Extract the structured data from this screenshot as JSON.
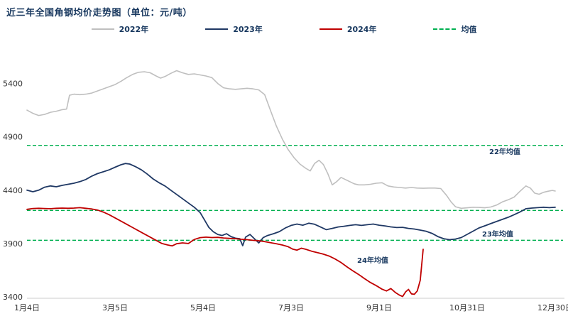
{
  "title": "近三年全国角钢均价走势图（单位：元/吨）",
  "legend": {
    "items": [
      {
        "key": "2022",
        "label": "2022年",
        "color": "#bfbfbf",
        "dash": false
      },
      {
        "key": "2023",
        "label": "2023年",
        "color": "#1f3864",
        "dash": false
      },
      {
        "key": "2024",
        "label": "2024年",
        "color": "#c00000",
        "dash": false
      },
      {
        "key": "mean",
        "label": "均值",
        "color": "#00b050",
        "dash": true
      }
    ]
  },
  "chart_data": {
    "type": "line",
    "title": "近三年全国角钢均价走势图",
    "unit": "元/吨",
    "xlabel": "",
    "ylabel": "",
    "ylim": [
      3400,
      5650
    ],
    "y_ticks": [
      3400,
      3900,
      4400,
      4900,
      5400
    ],
    "x_ticks": [
      {
        "day": 4,
        "label": "1月4日"
      },
      {
        "day": 64,
        "label": "3月5日"
      },
      {
        "day": 124,
        "label": "5月4日"
      },
      {
        "day": 184,
        "label": "7月3日"
      },
      {
        "day": 244,
        "label": "9月1日"
      },
      {
        "day": 304,
        "label": "10月31日"
      },
      {
        "day": 364,
        "label": "12月30日"
      }
    ],
    "mean_color": "#00b050",
    "mean_lines": [
      {
        "label": "22年均值",
        "value": 4820,
        "label_x": 689,
        "label_y": 205
      },
      {
        "label": "23年均值",
        "value": 4210,
        "label_x": 679,
        "label_y": 321
      },
      {
        "label": "24年均值",
        "value": 3930,
        "label_x": 503,
        "label_y": 358
      }
    ],
    "series": [
      {
        "name": "2022",
        "color": "#bfbfbf",
        "width": 1.6,
        "points": [
          [
            4,
            5150
          ],
          [
            8,
            5120
          ],
          [
            12,
            5100
          ],
          [
            16,
            5110
          ],
          [
            20,
            5130
          ],
          [
            24,
            5140
          ],
          [
            28,
            5155
          ],
          [
            31,
            5160
          ],
          [
            33,
            5290
          ],
          [
            36,
            5300
          ],
          [
            40,
            5295
          ],
          [
            44,
            5300
          ],
          [
            48,
            5310
          ],
          [
            52,
            5330
          ],
          [
            56,
            5350
          ],
          [
            60,
            5370
          ],
          [
            64,
            5390
          ],
          [
            68,
            5420
          ],
          [
            72,
            5455
          ],
          [
            76,
            5485
          ],
          [
            80,
            5505
          ],
          [
            84,
            5510
          ],
          [
            88,
            5500
          ],
          [
            92,
            5470
          ],
          [
            95,
            5450
          ],
          [
            98,
            5465
          ],
          [
            102,
            5495
          ],
          [
            106,
            5520
          ],
          [
            110,
            5500
          ],
          [
            114,
            5485
          ],
          [
            118,
            5490
          ],
          [
            122,
            5480
          ],
          [
            126,
            5470
          ],
          [
            130,
            5455
          ],
          [
            134,
            5400
          ],
          [
            138,
            5360
          ],
          [
            142,
            5350
          ],
          [
            146,
            5345
          ],
          [
            150,
            5350
          ],
          [
            154,
            5355
          ],
          [
            158,
            5350
          ],
          [
            162,
            5340
          ],
          [
            166,
            5295
          ],
          [
            170,
            5145
          ],
          [
            174,
            5000
          ],
          [
            178,
            4880
          ],
          [
            182,
            4780
          ],
          [
            186,
            4705
          ],
          [
            190,
            4645
          ],
          [
            194,
            4605
          ],
          [
            197,
            4580
          ],
          [
            200,
            4650
          ],
          [
            203,
            4680
          ],
          [
            206,
            4640
          ],
          [
            209,
            4555
          ],
          [
            212,
            4450
          ],
          [
            215,
            4480
          ],
          [
            218,
            4520
          ],
          [
            221,
            4500
          ],
          [
            224,
            4480
          ],
          [
            227,
            4460
          ],
          [
            230,
            4450
          ],
          [
            234,
            4450
          ],
          [
            238,
            4455
          ],
          [
            242,
            4465
          ],
          [
            246,
            4470
          ],
          [
            250,
            4440
          ],
          [
            254,
            4430
          ],
          [
            258,
            4425
          ],
          [
            262,
            4420
          ],
          [
            266,
            4425
          ],
          [
            270,
            4420
          ],
          [
            274,
            4418
          ],
          [
            278,
            4420
          ],
          [
            282,
            4420
          ],
          [
            286,
            4415
          ],
          [
            290,
            4350
          ],
          [
            293,
            4290
          ],
          [
            296,
            4245
          ],
          [
            300,
            4230
          ],
          [
            304,
            4235
          ],
          [
            308,
            4240
          ],
          [
            312,
            4238
          ],
          [
            316,
            4235
          ],
          [
            320,
            4242
          ],
          [
            324,
            4260
          ],
          [
            328,
            4290
          ],
          [
            332,
            4310
          ],
          [
            336,
            4335
          ],
          [
            340,
            4390
          ],
          [
            344,
            4440
          ],
          [
            347,
            4420
          ],
          [
            350,
            4372
          ],
          [
            353,
            4362
          ],
          [
            356,
            4380
          ],
          [
            359,
            4390
          ],
          [
            362,
            4398
          ],
          [
            364,
            4392
          ]
        ]
      },
      {
        "name": "2023",
        "color": "#1f3864",
        "width": 1.8,
        "points": [
          [
            4,
            4400
          ],
          [
            8,
            4385
          ],
          [
            12,
            4400
          ],
          [
            16,
            4428
          ],
          [
            20,
            4440
          ],
          [
            24,
            4432
          ],
          [
            28,
            4445
          ],
          [
            32,
            4455
          ],
          [
            36,
            4465
          ],
          [
            40,
            4480
          ],
          [
            44,
            4500
          ],
          [
            48,
            4530
          ],
          [
            52,
            4555
          ],
          [
            56,
            4572
          ],
          [
            60,
            4590
          ],
          [
            64,
            4615
          ],
          [
            68,
            4638
          ],
          [
            71,
            4650
          ],
          [
            74,
            4645
          ],
          [
            78,
            4620
          ],
          [
            82,
            4590
          ],
          [
            86,
            4550
          ],
          [
            90,
            4505
          ],
          [
            94,
            4470
          ],
          [
            98,
            4440
          ],
          [
            102,
            4400
          ],
          [
            106,
            4360
          ],
          [
            110,
            4320
          ],
          [
            114,
            4280
          ],
          [
            118,
            4240
          ],
          [
            122,
            4190
          ],
          [
            125,
            4120
          ],
          [
            128,
            4050
          ],
          [
            131,
            4010
          ],
          [
            134,
            3985
          ],
          [
            137,
            3975
          ],
          [
            140,
            3992
          ],
          [
            143,
            3965
          ],
          [
            146,
            3950
          ],
          [
            149,
            3945
          ],
          [
            151,
            3880
          ],
          [
            153,
            3960
          ],
          [
            156,
            3985
          ],
          [
            159,
            3945
          ],
          [
            162,
            3905
          ],
          [
            165,
            3955
          ],
          [
            168,
            3975
          ],
          [
            172,
            3992
          ],
          [
            176,
            4012
          ],
          [
            180,
            4045
          ],
          [
            184,
            4070
          ],
          [
            188,
            4082
          ],
          [
            192,
            4072
          ],
          [
            196,
            4090
          ],
          [
            200,
            4080
          ],
          [
            204,
            4055
          ],
          [
            208,
            4030
          ],
          [
            212,
            4042
          ],
          [
            216,
            4055
          ],
          [
            220,
            4062
          ],
          [
            224,
            4070
          ],
          [
            228,
            4076
          ],
          [
            232,
            4070
          ],
          [
            236,
            4076
          ],
          [
            240,
            4082
          ],
          [
            244,
            4072
          ],
          [
            248,
            4065
          ],
          [
            252,
            4056
          ],
          [
            256,
            4050
          ],
          [
            260,
            4052
          ],
          [
            264,
            4042
          ],
          [
            268,
            4036
          ],
          [
            272,
            4026
          ],
          [
            276,
            4015
          ],
          [
            280,
            3995
          ],
          [
            284,
            3965
          ],
          [
            288,
            3945
          ],
          [
            292,
            3936
          ],
          [
            296,
            3942
          ],
          [
            300,
            3956
          ],
          [
            304,
            3986
          ],
          [
            308,
            4016
          ],
          [
            312,
            4046
          ],
          [
            316,
            4066
          ],
          [
            320,
            4086
          ],
          [
            324,
            4106
          ],
          [
            328,
            4126
          ],
          [
            332,
            4146
          ],
          [
            336,
            4170
          ],
          [
            340,
            4196
          ],
          [
            344,
            4226
          ],
          [
            348,
            4232
          ],
          [
            352,
            4236
          ],
          [
            356,
            4240
          ],
          [
            360,
            4236
          ],
          [
            364,
            4240
          ]
        ]
      },
      {
        "name": "2024",
        "color": "#c00000",
        "width": 1.8,
        "points": [
          [
            4,
            4220
          ],
          [
            8,
            4228
          ],
          [
            12,
            4230
          ],
          [
            16,
            4228
          ],
          [
            20,
            4226
          ],
          [
            24,
            4230
          ],
          [
            28,
            4232
          ],
          [
            32,
            4230
          ],
          [
            36,
            4232
          ],
          [
            40,
            4236
          ],
          [
            44,
            4230
          ],
          [
            48,
            4224
          ],
          [
            52,
            4214
          ],
          [
            56,
            4195
          ],
          [
            60,
            4170
          ],
          [
            64,
            4140
          ],
          [
            68,
            4110
          ],
          [
            72,
            4080
          ],
          [
            76,
            4050
          ],
          [
            80,
            4020
          ],
          [
            84,
            3990
          ],
          [
            88,
            3960
          ],
          [
            92,
            3930
          ],
          [
            96,
            3900
          ],
          [
            100,
            3886
          ],
          [
            103,
            3878
          ],
          [
            106,
            3898
          ],
          [
            110,
            3906
          ],
          [
            114,
            3900
          ],
          [
            118,
            3938
          ],
          [
            122,
            3955
          ],
          [
            126,
            3960
          ],
          [
            130,
            3956
          ],
          [
            134,
            3958
          ],
          [
            138,
            3952
          ],
          [
            142,
            3948
          ],
          [
            146,
            3945
          ],
          [
            150,
            3940
          ],
          [
            154,
            3936
          ],
          [
            158,
            3930
          ],
          [
            162,
            3926
          ],
          [
            166,
            3918
          ],
          [
            170,
            3908
          ],
          [
            174,
            3898
          ],
          [
            178,
            3886
          ],
          [
            182,
            3870
          ],
          [
            185,
            3848
          ],
          [
            188,
            3838
          ],
          [
            191,
            3856
          ],
          [
            194,
            3846
          ],
          [
            198,
            3828
          ],
          [
            202,
            3815
          ],
          [
            206,
            3800
          ],
          [
            210,
            3782
          ],
          [
            214,
            3755
          ],
          [
            218,
            3722
          ],
          [
            222,
            3682
          ],
          [
            226,
            3645
          ],
          [
            230,
            3610
          ],
          [
            234,
            3572
          ],
          [
            238,
            3535
          ],
          [
            242,
            3505
          ],
          [
            246,
            3472
          ],
          [
            249,
            3455
          ],
          [
            252,
            3478
          ],
          [
            255,
            3442
          ],
          [
            258,
            3415
          ],
          [
            260,
            3403
          ],
          [
            262,
            3446
          ],
          [
            264,
            3470
          ],
          [
            266,
            3428
          ],
          [
            268,
            3424
          ],
          [
            270,
            3455
          ],
          [
            272,
            3556
          ],
          [
            274,
            3846
          ]
        ]
      }
    ]
  }
}
